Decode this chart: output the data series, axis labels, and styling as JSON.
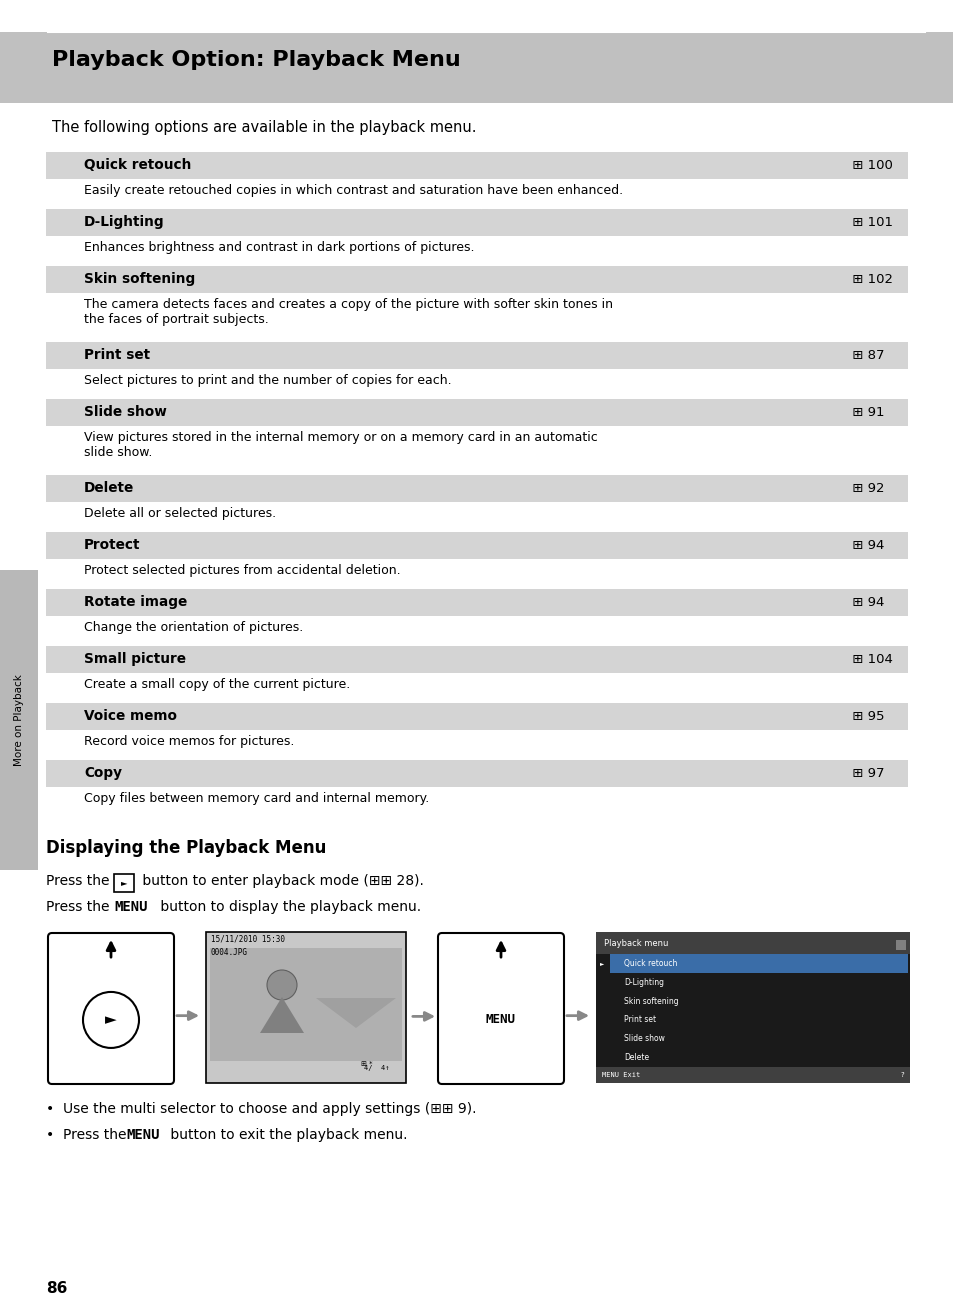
{
  "title": "Playback Option: Playback Menu",
  "title_bg": "#c0c0c0",
  "page_bg": "#ffffff",
  "intro_text": "The following options are available in the playback menu.",
  "rows": [
    {
      "label": "Quick retouch",
      "page": "100",
      "desc": "Easily create retouched copies in which contrast and saturation have been enhanced.",
      "lines": 1
    },
    {
      "label": "D-Lighting",
      "page": "101",
      "desc": "Enhances brightness and contrast in dark portions of pictures.",
      "lines": 1
    },
    {
      "label": "Skin softening",
      "page": "102",
      "desc": "The camera detects faces and creates a copy of the picture with softer skin tones in\nthe faces of portrait subjects.",
      "lines": 2
    },
    {
      "label": "Print set",
      "page": "87",
      "desc": "Select pictures to print and the number of copies for each.",
      "lines": 1
    },
    {
      "label": "Slide show",
      "page": "91",
      "desc": "View pictures stored in the internal memory or on a memory card in an automatic\nslide show.",
      "lines": 2
    },
    {
      "label": "Delete",
      "page": "92",
      "desc": "Delete all or selected pictures.",
      "lines": 1
    },
    {
      "label": "Protect",
      "page": "94",
      "desc": "Protect selected pictures from accidental deletion.",
      "lines": 1
    },
    {
      "label": "Rotate image",
      "page": "94",
      "desc": "Change the orientation of pictures.",
      "lines": 1
    },
    {
      "label": "Small picture",
      "page": "104",
      "desc": "Create a small copy of the current picture.",
      "lines": 1
    },
    {
      "label": "Voice memo",
      "page": "95",
      "desc": "Record voice memos for pictures.",
      "lines": 1
    },
    {
      "label": "Copy",
      "page": "97",
      "desc": "Copy files between memory card and internal memory.",
      "lines": 1
    }
  ],
  "section2_title": "Displaying the Playback Menu",
  "page_number": "86",
  "sidebar_text": "More on Playback",
  "row_bg_shaded": "#d8d8d8",
  "text_color": "#000000"
}
